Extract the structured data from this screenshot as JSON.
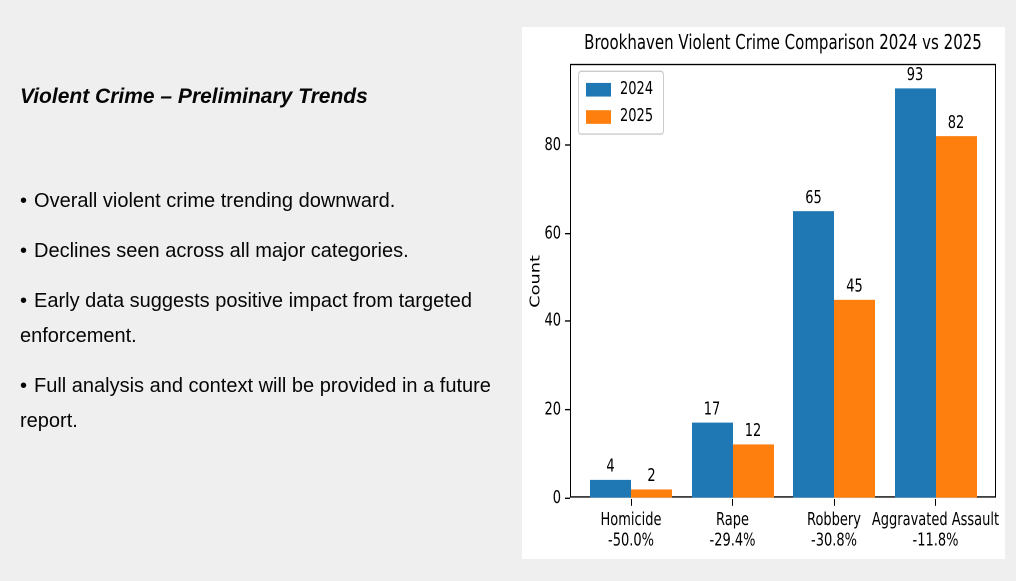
{
  "slide": {
    "title": "Violent Crime – Preliminary Trends",
    "bullet_glyph": "•",
    "bullets": [
      "Overall violent crime trending downward.",
      "Declines seen across all major categories.",
      "Early data suggests positive impact from targeted enforcement.",
      "Full analysis and context will be provided in a future report."
    ]
  },
  "chart_data": {
    "type": "bar",
    "title": "Brookhaven Violent Crime Comparison 2024 vs 2025",
    "xlabel": "",
    "ylabel": "Count",
    "categories": [
      "Homicide",
      "Rape",
      "Robbery",
      "Aggravated Assault"
    ],
    "category_change_labels": [
      "-50.0%",
      "-29.4%",
      "-30.8%",
      "-11.8%"
    ],
    "series": [
      {
        "name": "2024",
        "color": "#1f77b4",
        "values": [
          4,
          17,
          65,
          93
        ]
      },
      {
        "name": "2025",
        "color": "#ff7f0e",
        "values": [
          2,
          12,
          45,
          82
        ]
      }
    ],
    "yticks": [
      0,
      20,
      40,
      60,
      80
    ],
    "ylim": [
      0,
      98.5
    ],
    "grid": false,
    "legend_position": "upper left",
    "bar_value_labels": true
  },
  "colors": {
    "background": "#efefef",
    "panel": "#ffffff",
    "text": "#000000",
    "axis": "#000000"
  }
}
